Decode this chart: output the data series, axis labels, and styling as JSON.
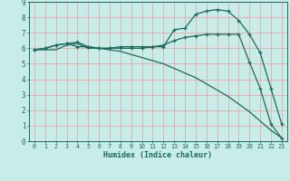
{
  "xlabel": "Humidex (Indice chaleur)",
  "background_color": "#c8ede9",
  "grid_color": "#e8a8a8",
  "line_color": "#1a6b5a",
  "xlim": [
    -0.5,
    23.5
  ],
  "ylim": [
    0,
    9
  ],
  "x_ticks": [
    0,
    1,
    2,
    3,
    4,
    5,
    6,
    7,
    8,
    9,
    10,
    11,
    12,
    13,
    14,
    15,
    16,
    17,
    18,
    19,
    20,
    21,
    22,
    23
  ],
  "y_ticks": [
    0,
    1,
    2,
    3,
    4,
    5,
    6,
    7,
    8,
    9
  ],
  "series1_x": [
    0,
    1,
    2,
    3,
    4,
    5,
    6,
    7,
    8,
    9,
    10,
    11,
    12,
    13,
    14,
    15,
    16,
    17,
    18,
    19,
    20,
    21,
    22,
    23
  ],
  "series1_y": [
    5.9,
    6.0,
    6.2,
    6.3,
    6.4,
    6.1,
    6.0,
    6.0,
    6.1,
    6.1,
    6.1,
    6.1,
    6.2,
    6.5,
    6.7,
    6.8,
    6.9,
    6.9,
    6.9,
    6.9,
    5.1,
    3.4,
    1.1,
    0.2
  ],
  "series2_x": [
    0,
    1,
    2,
    3,
    4,
    5,
    6,
    7,
    8,
    9,
    10,
    11,
    12,
    13,
    14,
    15,
    16,
    17,
    18,
    19,
    20,
    21,
    22,
    23
  ],
  "series2_y": [
    5.9,
    6.0,
    6.2,
    6.3,
    6.1,
    6.1,
    6.0,
    6.0,
    6.0,
    6.0,
    6.0,
    6.1,
    6.1,
    7.2,
    7.3,
    8.2,
    8.4,
    8.5,
    8.4,
    7.8,
    6.9,
    5.7,
    3.4,
    1.1
  ],
  "series3_x": [
    0,
    1,
    2,
    3,
    4,
    5,
    6,
    7,
    8,
    9,
    10,
    11,
    12,
    13,
    14,
    15,
    16,
    17,
    18,
    19,
    20,
    21,
    22,
    23
  ],
  "series3_y": [
    5.9,
    5.9,
    5.9,
    6.2,
    6.3,
    6.0,
    6.0,
    5.9,
    5.8,
    5.6,
    5.4,
    5.2,
    5.0,
    4.7,
    4.4,
    4.1,
    3.7,
    3.3,
    2.9,
    2.4,
    1.9,
    1.3,
    0.7,
    0.2
  ]
}
